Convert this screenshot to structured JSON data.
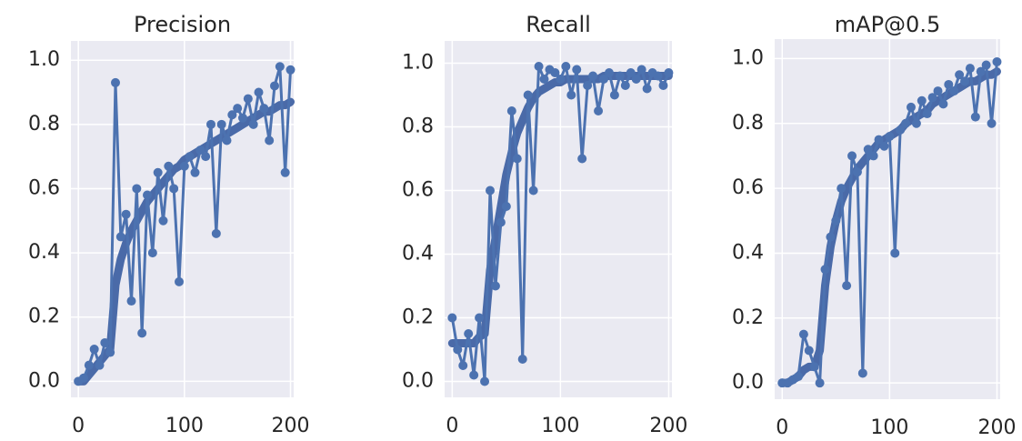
{
  "chart_data": [
    {
      "type": "line",
      "title": "Precision",
      "x": [
        0,
        5,
        10,
        15,
        20,
        25,
        30,
        35,
        40,
        45,
        50,
        55,
        60,
        65,
        70,
        75,
        80,
        85,
        90,
        95,
        100,
        105,
        110,
        115,
        120,
        125,
        130,
        135,
        140,
        145,
        150,
        155,
        160,
        165,
        170,
        175,
        180,
        185,
        190,
        195,
        200
      ],
      "series": [
        {
          "color": "#4c72b0",
          "markers": true,
          "values": [
            0.0,
            0.01,
            0.05,
            0.1,
            0.05,
            0.12,
            0.09,
            0.93,
            0.45,
            0.52,
            0.25,
            0.6,
            0.15,
            0.58,
            0.4,
            0.65,
            0.5,
            0.67,
            0.6,
            0.31,
            0.67,
            0.7,
            0.65,
            0.72,
            0.7,
            0.8,
            0.46,
            0.8,
            0.75,
            0.83,
            0.85,
            0.82,
            0.88,
            0.8,
            0.9,
            0.85,
            0.75,
            0.92,
            0.98,
            0.65,
            0.97
          ]
        },
        {
          "color": "#4a6aa8",
          "markers": false,
          "values": [
            0,
            0,
            0.02,
            0.04,
            0.06,
            0.08,
            0.1,
            0.3,
            0.38,
            0.43,
            0.47,
            0.5,
            0.53,
            0.56,
            0.58,
            0.6,
            0.62,
            0.64,
            0.66,
            0.67,
            0.69,
            0.7,
            0.71,
            0.72,
            0.73,
            0.74,
            0.75,
            0.76,
            0.77,
            0.78,
            0.79,
            0.8,
            0.81,
            0.82,
            0.83,
            0.84,
            0.84,
            0.85,
            0.86,
            0.86,
            0.87
          ]
        }
      ],
      "xlim": [
        -7,
        203
      ],
      "ylim": [
        -0.05,
        1.06
      ],
      "xticks": [
        0,
        100,
        200
      ],
      "yticks": [
        {
          "value": 0,
          "label": "0.0"
        },
        0.2,
        0.4,
        0.6,
        0.8,
        {
          "value": 1,
          "label": "1.0"
        }
      ],
      "grid": true
    },
    {
      "type": "line",
      "title": "Recall",
      "x": [
        0,
        5,
        10,
        15,
        20,
        25,
        30,
        35,
        40,
        45,
        50,
        55,
        60,
        65,
        70,
        75,
        80,
        85,
        90,
        95,
        100,
        105,
        110,
        115,
        120,
        125,
        130,
        135,
        140,
        145,
        150,
        155,
        160,
        165,
        170,
        175,
        180,
        185,
        190,
        195,
        200
      ],
      "series": [
        {
          "color": "#4c72b0",
          "markers": true,
          "values": [
            0.2,
            0.1,
            0.05,
            0.15,
            0.02,
            0.2,
            0.0,
            0.6,
            0.3,
            0.5,
            0.55,
            0.85,
            0.7,
            0.07,
            0.9,
            0.6,
            0.99,
            0.95,
            0.98,
            0.97,
            0.95,
            0.99,
            0.9,
            0.98,
            0.7,
            0.93,
            0.96,
            0.85,
            0.95,
            0.97,
            0.9,
            0.96,
            0.93,
            0.97,
            0.95,
            0.98,
            0.92,
            0.97,
            0.96,
            0.93,
            0.97
          ]
        },
        {
          "color": "#4a6aa8",
          "markers": false,
          "values": [
            0.12,
            0.12,
            0.12,
            0.12,
            0.12,
            0.14,
            0.15,
            0.35,
            0.45,
            0.55,
            0.65,
            0.72,
            0.78,
            0.82,
            0.86,
            0.89,
            0.91,
            0.92,
            0.93,
            0.94,
            0.94,
            0.95,
            0.95,
            0.95,
            0.95,
            0.95,
            0.95,
            0.95,
            0.96,
            0.96,
            0.96,
            0.96,
            0.96,
            0.96,
            0.96,
            0.96,
            0.96,
            0.96,
            0.96,
            0.96,
            0.96
          ]
        }
      ],
      "xlim": [
        -7,
        203
      ],
      "ylim": [
        -0.05,
        1.07
      ],
      "xticks": [
        0,
        100,
        200
      ],
      "yticks": [
        {
          "value": 0,
          "label": "0.0"
        },
        0.2,
        0.4,
        0.6,
        0.8,
        {
          "value": 1,
          "label": "1.0"
        }
      ],
      "grid": true
    },
    {
      "type": "line",
      "title": "mAP@0.5",
      "x": [
        0,
        5,
        10,
        15,
        20,
        25,
        30,
        35,
        40,
        45,
        50,
        55,
        60,
        65,
        70,
        75,
        80,
        85,
        90,
        95,
        100,
        105,
        110,
        115,
        120,
        125,
        130,
        135,
        140,
        145,
        150,
        155,
        160,
        165,
        170,
        175,
        180,
        185,
        190,
        195,
        200
      ],
      "series": [
        {
          "color": "#4c72b0",
          "markers": true,
          "values": [
            0.0,
            0.0,
            0.01,
            0.02,
            0.15,
            0.1,
            0.05,
            0.0,
            0.35,
            0.45,
            0.5,
            0.6,
            0.3,
            0.7,
            0.65,
            0.03,
            0.72,
            0.7,
            0.75,
            0.73,
            0.76,
            0.4,
            0.78,
            0.8,
            0.85,
            0.8,
            0.87,
            0.83,
            0.88,
            0.9,
            0.86,
            0.92,
            0.9,
            0.95,
            0.93,
            0.97,
            0.82,
            0.96,
            0.98,
            0.8,
            0.99
          ]
        },
        {
          "color": "#4a6aa8",
          "markers": false,
          "values": [
            0,
            0,
            0.01,
            0.02,
            0.04,
            0.05,
            0.05,
            0.1,
            0.3,
            0.42,
            0.5,
            0.56,
            0.6,
            0.63,
            0.66,
            0.68,
            0.7,
            0.72,
            0.74,
            0.75,
            0.76,
            0.77,
            0.78,
            0.8,
            0.81,
            0.82,
            0.83,
            0.84,
            0.86,
            0.87,
            0.88,
            0.89,
            0.9,
            0.91,
            0.92,
            0.93,
            0.93,
            0.94,
            0.95,
            0.95,
            0.96
          ]
        }
      ],
      "xlim": [
        -7,
        203
      ],
      "ylim": [
        -0.05,
        1.06
      ],
      "xticks": [
        0,
        100,
        200
      ],
      "yticks": [
        {
          "value": 0,
          "label": "0.0"
        },
        0.2,
        0.4,
        0.6,
        0.8,
        {
          "value": 1,
          "label": "1.0"
        }
      ],
      "grid": true
    }
  ]
}
